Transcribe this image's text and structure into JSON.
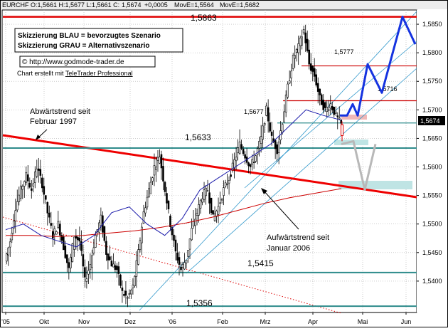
{
  "header": {
    "symbol_text": "EURCHF O:1,5661 H:1,5677 L:1,5661 C:",
    "close_text": "1,5674",
    "change_text": "+0,0005",
    "ma1_text": "MovE=1,5564",
    "ma2_text": "MovE=1,5682",
    "colors": {
      "close": "#d00000",
      "ma1": "#cc0000",
      "ma2": "#0000aa"
    }
  },
  "legend": {
    "line1": "Skizzierung BLAU = bevorzugtes Szenario",
    "line2": "Skizzierung GRAU = Alternativszenario",
    "copyright": "© http://www.godmode-trader.de",
    "credit_prefix": "Chart erstellt mit ",
    "credit_link": "TeleTrader Professional"
  },
  "annotations": {
    "abwaerts_1": "Abwärtstrend seit",
    "abwaerts_2": "Februar 1997",
    "aufwaerts_1": "Aufwärtstrend seit",
    "aufwaerts_2": "Januar 2006",
    "current_price": "1,5674"
  },
  "chart_data": {
    "type": "candlestick",
    "instrument": "EURCHF",
    "ylim": [
      1.5345,
      1.5875
    ],
    "y_ticks": [
      "1,5850",
      "1,5800",
      "1,5750",
      "1,5700",
      "1,5650",
      "1,5600",
      "1,5550",
      "1,5500",
      "1,5450",
      "1,5400"
    ],
    "x_ticks": [
      "'05",
      "Okt",
      "Nov",
      "Dez",
      "'06",
      "Feb",
      "Mrz",
      "Apr",
      "Mai",
      "Jun"
    ],
    "horizontal_levels": [
      {
        "value": 1.5863,
        "label": "1,5863",
        "color": "#e00000"
      },
      {
        "value": 1.5777,
        "label": "1,5777",
        "color": "#cc0000"
      },
      {
        "value": 1.5716,
        "label": "1,5716",
        "color": "#cc0000"
      },
      {
        "value": 1.5677,
        "label": "1,5677",
        "color": "#2e8b8b"
      },
      {
        "value": 1.5633,
        "label": "1,5633",
        "color": "#2e8b8b"
      },
      {
        "value": 1.5415,
        "label": "1,5415",
        "color": "#2e8b8b"
      },
      {
        "value": 1.5356,
        "label": "1,5356",
        "color": "#2e8b8b"
      }
    ],
    "price_path": [
      [
        "'05",
        1.5435
      ],
      [
        null,
        1.547
      ],
      [
        null,
        1.553
      ],
      [
        null,
        1.556
      ],
      [
        null,
        1.5585
      ],
      [
        null,
        1.556
      ],
      [
        null,
        1.56
      ],
      [
        null,
        1.557
      ],
      [
        "Okt",
        1.552
      ],
      [
        null,
        1.548
      ],
      [
        null,
        1.55
      ],
      [
        null,
        1.546
      ],
      [
        null,
        1.542
      ],
      [
        null,
        1.548
      ],
      [
        null,
        1.547
      ],
      [
        "Nov",
        1.54
      ],
      [
        null,
        1.543
      ],
      [
        null,
        1.548
      ],
      [
        null,
        1.551
      ],
      [
        null,
        1.545
      ],
      [
        null,
        1.543
      ],
      [
        null,
        1.542
      ],
      [
        null,
        1.538
      ],
      [
        "Dez",
        1.537
      ],
      [
        null,
        1.539
      ],
      [
        null,
        1.545
      ],
      [
        null,
        1.552
      ],
      [
        null,
        1.556
      ],
      [
        null,
        1.56
      ],
      [
        null,
        1.562
      ],
      [
        null,
        1.556
      ],
      [
        "'06",
        1.55
      ],
      [
        null,
        1.545
      ],
      [
        null,
        1.542
      ],
      [
        null,
        1.544
      ],
      [
        null,
        1.549
      ],
      [
        null,
        1.552
      ],
      [
        null,
        1.555
      ],
      [
        null,
        1.556
      ],
      [
        "Feb",
        1.551
      ],
      [
        null,
        1.553
      ],
      [
        null,
        1.556
      ],
      [
        null,
        1.558
      ],
      [
        null,
        1.561
      ],
      [
        null,
        1.564
      ],
      [
        null,
        1.562
      ],
      [
        null,
        1.56
      ],
      [
        "Mrz",
        1.562
      ],
      [
        null,
        1.565
      ],
      [
        null,
        1.57
      ],
      [
        null,
        1.565
      ],
      [
        null,
        1.563
      ],
      [
        null,
        1.568
      ],
      [
        null,
        1.574
      ],
      [
        null,
        1.579
      ],
      [
        null,
        1.581
      ],
      [
        "Apr",
        1.584
      ],
      [
        null,
        1.578
      ],
      [
        null,
        1.576
      ],
      [
        null,
        1.572
      ],
      [
        null,
        1.57
      ],
      [
        null,
        1.571
      ],
      [
        null,
        1.569
      ],
      [
        null,
        1.5674
      ]
    ],
    "ma_long_red": [
      1.548,
      1.548,
      1.5478,
      1.548,
      1.5484,
      1.5488,
      1.5494,
      1.5502,
      1.5512,
      1.5524,
      1.5536,
      1.5546,
      1.5554,
      1.5562
    ],
    "ma_short_blue": [
      1.549,
      1.55,
      1.548,
      1.547,
      1.546,
      1.548,
      1.552,
      1.553,
      1.55,
      1.548,
      1.551,
      1.556,
      1.558,
      1.56,
      1.562,
      1.564,
      1.567,
      1.57,
      1.569,
      1.5682
    ],
    "scenario_blue": [
      1.569,
      1.569,
      1.571,
      1.569,
      1.578,
      1.573,
      1.5863,
      1.5815
    ],
    "scenario_gray": [
      1.564,
      1.5645,
      1.556,
      1.564
    ]
  }
}
